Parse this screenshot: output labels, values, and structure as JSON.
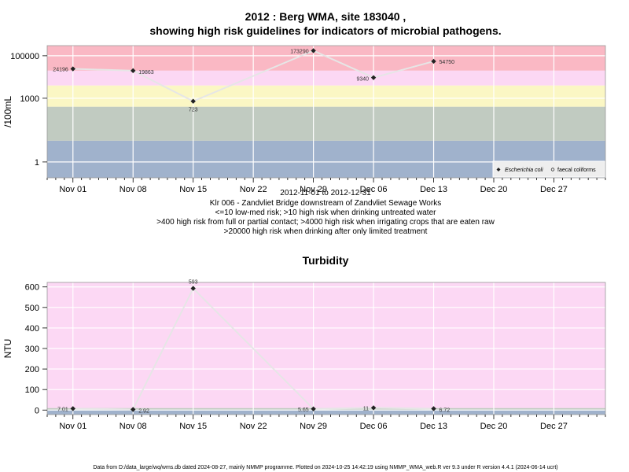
{
  "chart_data": [
    {
      "type": "line",
      "title": "2012 : Berg WMA, site 183040 ,",
      "subtitle": "showing high risk guidelines for indicators of microbial pathogens.",
      "ylabel": "/100mL",
      "y_scale": "log",
      "ylim": [
        0.18,
        300000
      ],
      "xlim": [
        "2012-10-29",
        "2013-01-02"
      ],
      "x_ticks": [
        "Nov 01",
        "Nov 08",
        "Nov 15",
        "Nov 22",
        "Nov 29",
        "Dec 06",
        "Dec 13",
        "Dec 20",
        "Dec 27"
      ],
      "y_ticks": [
        "1",
        "1000",
        "100000"
      ],
      "grid": true,
      "legend_position": "bottom-right",
      "bands": [
        {
          "from": 0.18,
          "to": 10,
          "color": "#a0b2cc"
        },
        {
          "from": 10,
          "to": 400,
          "color": "#c1cbc1"
        },
        {
          "from": 400,
          "to": 4000,
          "color": "#fbf7c4"
        },
        {
          "from": 4000,
          "to": 20000,
          "color": "#fcd8f4"
        },
        {
          "from": 20000,
          "to": 300000,
          "color": "#fab8c4"
        }
      ],
      "series": [
        {
          "name": "Escherichia coli",
          "marker": "diamond",
          "x": [
            "2012-11-01",
            "2012-11-08",
            "2012-11-15",
            "2012-11-29",
            "2012-12-06",
            "2012-12-13"
          ],
          "values": [
            24196,
            19863,
            723,
            173290,
            9340,
            54750
          ],
          "labels": [
            "24196",
            "19863",
            "723",
            "173290",
            "9340",
            "54750"
          ]
        },
        {
          "name": "faecal coliforms",
          "marker": "circle",
          "x": [],
          "values": [],
          "labels": []
        }
      ],
      "caption": [
        "2012-11-01 to 2012-12-31",
        "Klr 006 - Zandvliet Bridge downstream of Zandvliet Sewage Works",
        "<=10 low-med risk; >10 high risk when drinking untreated water",
        ">400 high risk from full or partial contact; >4000 high risk when irrigating crops that are eaten raw",
        ">20000 high risk when drinking after only limited treatment"
      ]
    },
    {
      "type": "line",
      "title": "Turbidity",
      "ylabel": "NTU",
      "ylim": [
        -22,
        622
      ],
      "xlim": [
        "2012-10-29",
        "2013-01-02"
      ],
      "x_ticks": [
        "Nov 01",
        "Nov 08",
        "Nov 15",
        "Nov 22",
        "Nov 29",
        "Dec 06",
        "Dec 13",
        "Dec 20",
        "Dec 27"
      ],
      "y_ticks": [
        "0",
        "100",
        "200",
        "300",
        "400",
        "500",
        "600"
      ],
      "grid": true,
      "bands": [
        {
          "from": -22,
          "to": 1,
          "color": "#a0b2cc"
        },
        {
          "from": 1,
          "to": 10,
          "color": "#c1cbc1"
        },
        {
          "from": 10,
          "to": 622,
          "color": "#fcd8f4"
        }
      ],
      "series": [
        {
          "name": "",
          "marker": "diamond",
          "x": [
            "2012-11-01",
            "2012-11-08",
            "2012-11-15",
            "2012-11-29",
            "2012-12-06",
            "2012-12-13"
          ],
          "values": [
            7.01,
            2.92,
            593,
            5.65,
            11,
            6.72
          ],
          "labels": [
            "7.01",
            "2.92",
            "593",
            "5.65",
            "11",
            "6.72"
          ]
        }
      ]
    }
  ],
  "footer": "Data from D:/data_large/wq/wms.db dated 2024-08-27, mainly NMMP programme. Plotted on 2024-10-25 14:42:19 using NMMP_WMA_web.R ver 9.3 under R version 4.4.1 (2024-06-14 ucrt)"
}
